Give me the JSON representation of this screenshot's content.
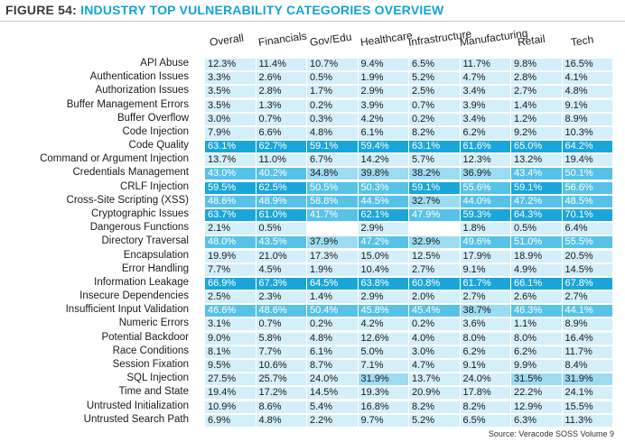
{
  "figure": {
    "number": "FIGURE 54:",
    "title": "INDUSTRY TOP VULNERABILITY CATEGORIES OVERVIEW",
    "source": "Source: Veracode SOSS Volume 9"
  },
  "colors": {
    "title_accent": "#14a3d6",
    "strong": "#1aa6db",
    "mid": "#57c2e8",
    "light": "#9cdcf3",
    "faint": "#d3eff9",
    "white": "#ffffff"
  },
  "chart_data": {
    "type": "table",
    "columns": [
      "Overall",
      "Financials",
      "Gov/Edu",
      "Healthcare",
      "Infrastructure",
      "Manufacturing",
      "Retail",
      "Tech"
    ],
    "rows": [
      {
        "label": "API Abuse",
        "values": [
          "12.3%",
          "11.4%",
          "10.7%",
          "9.4%",
          "6.5%",
          "11.7%",
          "9.8%",
          "16.5%"
        ]
      },
      {
        "label": "Authentication Issues",
        "values": [
          "3.3%",
          "2.6%",
          "0.5%",
          "1.9%",
          "5.2%",
          "4.7%",
          "2.8%",
          "4.1%"
        ]
      },
      {
        "label": "Authorization Issues",
        "values": [
          "3.5%",
          "2.8%",
          "1.7%",
          "2.9%",
          "2.5%",
          "3.4%",
          "2.7%",
          "4.8%"
        ]
      },
      {
        "label": "Buffer Management Errors",
        "values": [
          "3.5%",
          "1.3%",
          "0.2%",
          "3.9%",
          "0.7%",
          "3.9%",
          "1.4%",
          "9.1%"
        ]
      },
      {
        "label": "Buffer Overflow",
        "values": [
          "3.0%",
          "0.7%",
          "0.3%",
          "4.2%",
          "0.2%",
          "3.4%",
          "1.2%",
          "8.9%"
        ]
      },
      {
        "label": "Code Injection",
        "values": [
          "7.9%",
          "6.6%",
          "4.8%",
          "6.1%",
          "8.2%",
          "6.2%",
          "9.2%",
          "10.3%"
        ]
      },
      {
        "label": "Code Quality",
        "values": [
          "63.1%",
          "62.7%",
          "59.1%",
          "59.4%",
          "63.1%",
          "61.6%",
          "65.0%",
          "64.2%"
        ]
      },
      {
        "label": "Command or Argument Injection",
        "values": [
          "13.7%",
          "11.0%",
          "6.7%",
          "14.2%",
          "5.7%",
          "12.3%",
          "13.2%",
          "19.4%"
        ]
      },
      {
        "label": "Credentials Management",
        "values": [
          "43.0%",
          "40.2%",
          "34.8%",
          "39.8%",
          "38.2%",
          "36.9%",
          "43.4%",
          "50.1%"
        ]
      },
      {
        "label": "CRLF Injection",
        "values": [
          "59.5%",
          "62.5%",
          "50.5%",
          "50.3%",
          "59.1%",
          "55.6%",
          "59.1%",
          "56.6%"
        ]
      },
      {
        "label": "Cross-Site Scripting (XSS)",
        "values": [
          "48.6%",
          "48.9%",
          "58.8%",
          "44.5%",
          "32.7%",
          "44.0%",
          "47.2%",
          "48.5%"
        ]
      },
      {
        "label": "Cryptographic Issues",
        "values": [
          "63.7%",
          "61.0%",
          "41.7%",
          "62.1%",
          "47.9%",
          "59.3%",
          "64.3%",
          "70.1%"
        ]
      },
      {
        "label": "Dangerous Functions",
        "values": [
          "2.1%",
          "0.5%",
          "",
          "2.9%",
          "",
          "1.8%",
          "0.5%",
          "6.4%"
        ]
      },
      {
        "label": "Directory Traversal",
        "values": [
          "48.0%",
          "43.5%",
          "37.9%",
          "47.2%",
          "32.9%",
          "49.6%",
          "51.0%",
          "55.5%"
        ]
      },
      {
        "label": "Encapsulation",
        "values": [
          "19.9%",
          "21.0%",
          "17.3%",
          "15.0%",
          "12.5%",
          "17.9%",
          "18.9%",
          "20.5%"
        ]
      },
      {
        "label": "Error Handling",
        "values": [
          "7.7%",
          "4.5%",
          "1.9%",
          "10.4%",
          "2.7%",
          "9.1%",
          "4.9%",
          "14.5%"
        ]
      },
      {
        "label": "Information Leakage",
        "values": [
          "66.9%",
          "67.3%",
          "64.5%",
          "63.8%",
          "60.8%",
          "61.7%",
          "66.1%",
          "67.8%"
        ]
      },
      {
        "label": "Insecure Dependencies",
        "values": [
          "2.5%",
          "2.3%",
          "1.4%",
          "2.9%",
          "2.0%",
          "2.7%",
          "2.6%",
          "2.7%"
        ]
      },
      {
        "label": "Insufficient Input Validation",
        "values": [
          "46.6%",
          "48.6%",
          "50.4%",
          "45.8%",
          "45.4%",
          "38.7%",
          "46.3%",
          "44.1%"
        ]
      },
      {
        "label": "Numeric Errors",
        "values": [
          "3.1%",
          "0.7%",
          "0.2%",
          "4.2%",
          "0.2%",
          "3.6%",
          "1.1%",
          "8.9%"
        ]
      },
      {
        "label": "Potential Backdoor",
        "values": [
          "9.0%",
          "5.8%",
          "4.8%",
          "12.6%",
          "4.0%",
          "8.0%",
          "8.0%",
          "16.4%"
        ]
      },
      {
        "label": "Race Conditions",
        "values": [
          "8.1%",
          "7.7%",
          "6.1%",
          "5.0%",
          "3.0%",
          "6.2%",
          "6.2%",
          "11.7%"
        ]
      },
      {
        "label": "Session Fixation",
        "values": [
          "9.5%",
          "10.6%",
          "8.7%",
          "7.1%",
          "4.7%",
          "9.1%",
          "9.9%",
          "8.4%"
        ]
      },
      {
        "label": "SQL Injection",
        "values": [
          "27.5%",
          "25.7%",
          "24.0%",
          "31.9%",
          "13.7%",
          "24.0%",
          "31.5%",
          "31.9%"
        ]
      },
      {
        "label": "Time and State",
        "values": [
          "19.4%",
          "17.2%",
          "14.5%",
          "19.3%",
          "20.9%",
          "17.8%",
          "22.2%",
          "24.1%"
        ]
      },
      {
        "label": "Untrusted Initialization",
        "values": [
          "10.9%",
          "8.6%",
          "5.4%",
          "16.8%",
          "8.2%",
          "8.2%",
          "12.9%",
          "15.5%"
        ]
      },
      {
        "label": "Untrusted Search Path",
        "values": [
          "6.9%",
          "4.8%",
          "2.2%",
          "9.7%",
          "5.2%",
          "6.5%",
          "6.3%",
          "11.3%"
        ]
      }
    ]
  }
}
